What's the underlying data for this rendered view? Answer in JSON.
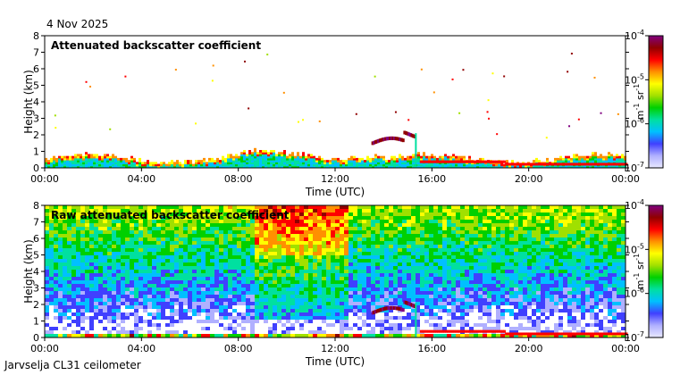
{
  "date": "4 Nov 2025",
  "footer": "Jarvselja CL31 ceilometer",
  "colors": {
    "colormap": [
      "#e8e8ff",
      "#b0b0ff",
      "#4040ff",
      "#00c0ff",
      "#00e0a0",
      "#00d000",
      "#a0e000",
      "#ffff00",
      "#ff9000",
      "#ff0000",
      "#900000",
      "#800080"
    ]
  },
  "chart_data": [
    {
      "type": "heatmap",
      "title": "Attenuated backscatter coefficient",
      "xlabel": "Time (UTC)",
      "ylabel": "Height (km)",
      "x_ticks": [
        "00:00",
        "04:00",
        "08:00",
        "12:00",
        "16:00",
        "20:00",
        "00:00"
      ],
      "xlim_hours": [
        0,
        24
      ],
      "y_ticks": [
        "0",
        "1",
        "2",
        "3",
        "4",
        "5",
        "6",
        "7",
        "8"
      ],
      "ylim": [
        0,
        8
      ],
      "colorbar": {
        "label_base": "m",
        "label_exp1": "-1",
        "label_mid": " sr",
        "label_exp2": "-1",
        "ticks": [
          {
            "base": "10",
            "exp": "-4"
          },
          {
            "base": "10",
            "exp": "-5"
          },
          {
            "base": "10",
            "exp": "-6"
          },
          {
            "base": "10",
            "exp": "-7"
          }
        ]
      }
    },
    {
      "type": "heatmap",
      "title": "Raw attenuated backscatter coefficient",
      "xlabel": "Time (UTC)",
      "ylabel": "Height (km)",
      "x_ticks": [
        "00:00",
        "04:00",
        "08:00",
        "12:00",
        "16:00",
        "20:00",
        "00:00"
      ],
      "xlim_hours": [
        0,
        24
      ],
      "y_ticks": [
        "0",
        "1",
        "2",
        "3",
        "4",
        "5",
        "6",
        "7",
        "8"
      ],
      "ylim": [
        0,
        8
      ],
      "colorbar": {
        "label_base": "m",
        "label_exp1": "-1",
        "label_mid": " sr",
        "label_exp2": "-1",
        "ticks": [
          {
            "base": "10",
            "exp": "-4"
          },
          {
            "base": "10",
            "exp": "-5"
          },
          {
            "base": "10",
            "exp": "-6"
          },
          {
            "base": "10",
            "exp": "-7"
          }
        ]
      }
    }
  ]
}
